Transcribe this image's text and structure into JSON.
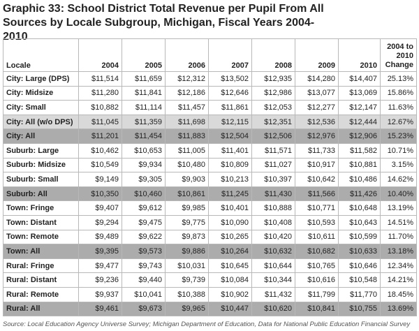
{
  "header": {
    "title": "Graphic 33: School District Total Revenue per Pupil From All Sources by Locale Subgroup, Michigan, Fiscal Years 2004-2010"
  },
  "table": {
    "columns": [
      "Locale",
      "2004",
      "2005",
      "2006",
      "2007",
      "2008",
      "2009",
      "2010",
      "2004 to 2010 Change"
    ],
    "rows": [
      [
        "City: Large (DPS)",
        "$11,514",
        "$11,659",
        "$12,312",
        "$13,502",
        "$12,935",
        "$14,280",
        "$14,407",
        "25.13%"
      ],
      [
        "City: Midsize",
        "$11,280",
        "$11,841",
        "$12,186",
        "$12,646",
        "$12,986",
        "$13,077",
        "$13,069",
        "15.86%"
      ],
      [
        "City: Small",
        "$10,882",
        "$11,114",
        "$11,457",
        "$11,861",
        "$12,053",
        "$12,277",
        "$12,147",
        "11.63%"
      ],
      [
        "City: All (w/o DPS)",
        "$11,045",
        "$11,359",
        "$11,698",
        "$12,115",
        "$12,351",
        "$12,536",
        "$12,444",
        "12.67%"
      ],
      [
        "City: All",
        "$11,201",
        "$11,454",
        "$11,883",
        "$12,504",
        "$12,506",
        "$12,976",
        "$12,906",
        "15.23%"
      ],
      [
        "Suburb: Large",
        "$10,462",
        "$10,653",
        "$11,005",
        "$11,401",
        "$11,571",
        "$11,733",
        "$11,582",
        "10.71%"
      ],
      [
        "Suburb: Midsize",
        "$10,549",
        "$9,934",
        "$10,480",
        "$10,809",
        "$11,027",
        "$10,917",
        "$10,881",
        "3.15%"
      ],
      [
        "Suburb: Small",
        "$9,149",
        "$9,305",
        "$9,903",
        "$10,213",
        "$10,397",
        "$10,642",
        "$10,486",
        "14.62%"
      ],
      [
        "Suburb: All",
        "$10,350",
        "$10,460",
        "$10,861",
        "$11,245",
        "$11,430",
        "$11,566",
        "$11,426",
        "10.40%"
      ],
      [
        "Town: Fringe",
        "$9,407",
        "$9,612",
        "$9,985",
        "$10,401",
        "$10,888",
        "$10,771",
        "$10,648",
        "13.19%"
      ],
      [
        "Town: Distant",
        "$9,294",
        "$9,475",
        "$9,775",
        "$10,090",
        "$10,408",
        "$10,593",
        "$10,643",
        "14.51%"
      ],
      [
        "Town: Remote",
        "$9,489",
        "$9,622",
        "$9,873",
        "$10,265",
        "$10,420",
        "$10,611",
        "$10,599",
        "11.70%"
      ],
      [
        "Town: All",
        "$9,395",
        "$9,573",
        "$9,886",
        "$10,264",
        "$10,632",
        "$10,682",
        "$10,633",
        "13.18%"
      ],
      [
        "Rural: Fringe",
        "$9,477",
        "$9,743",
        "$10,031",
        "$10,645",
        "$10,644",
        "$10,765",
        "$10,646",
        "12.34%"
      ],
      [
        "Rural: Distant",
        "$9,236",
        "$9,440",
        "$9,739",
        "$10,084",
        "$10,344",
        "$10,616",
        "$10,548",
        "14.21%"
      ],
      [
        "Rural: Remote",
        "$9,937",
        "$10,041",
        "$10,388",
        "$10,902",
        "$11,432",
        "$11,799",
        "$11,770",
        "18.45%"
      ],
      [
        "Rural: All",
        "$9,461",
        "$9,673",
        "$9,965",
        "$10,447",
        "$10,620",
        "$10,841",
        "$10,755",
        "13.69%"
      ]
    ],
    "row_fills": [
      null,
      null,
      null,
      "#d9d9d9",
      "#acacac",
      null,
      null,
      null,
      "#acacac",
      null,
      null,
      null,
      "#acacac",
      null,
      null,
      null,
      "#acacac"
    ]
  },
  "source": "Source: Local Education Agency Universe Survey; Michigan Department of Education, Data for National Public Education Financial Survey"
}
